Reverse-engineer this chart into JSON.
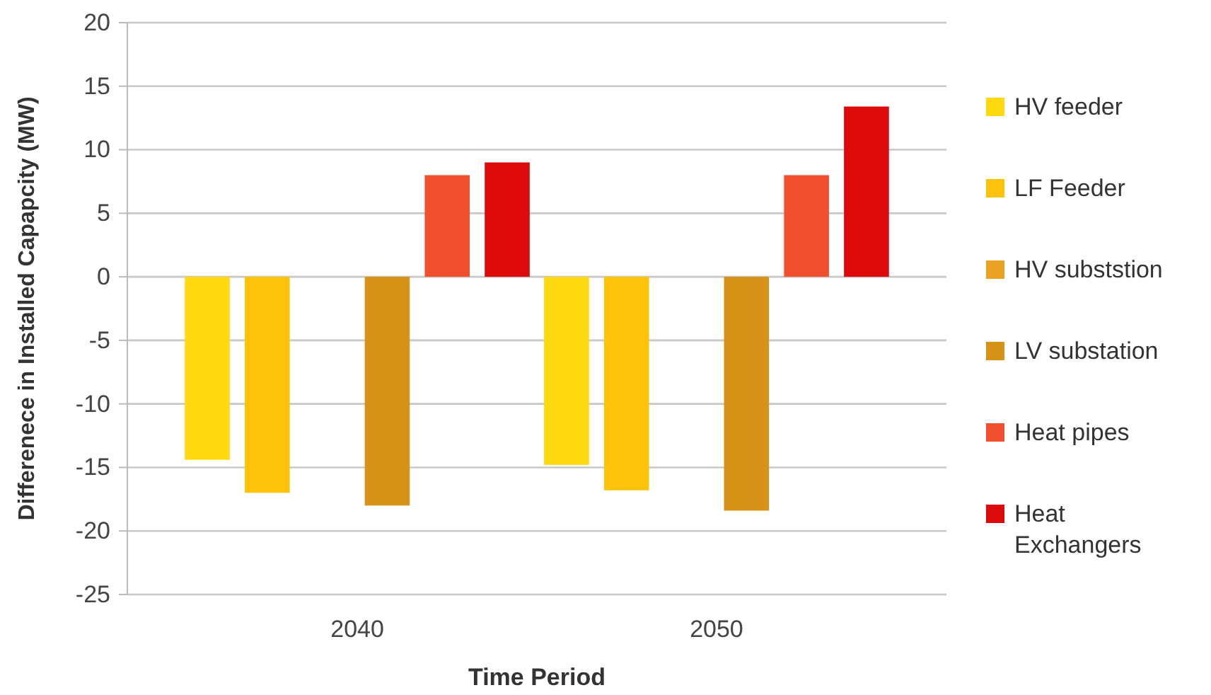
{
  "chart_data": {
    "type": "bar",
    "xlabel": "Time Period",
    "ylabel": "Differenece in Installed Capapcity (MW)",
    "categories": [
      "2040",
      "2050"
    ],
    "series": [
      {
        "name": "HV feeder",
        "color": "#ffd90f",
        "values": [
          -14.4,
          -14.8
        ]
      },
      {
        "name": "LF Feeder",
        "color": "#fdc30a",
        "values": [
          -17.0,
          -16.8
        ]
      },
      {
        "name": "HV subststion",
        "color": "#e8a323",
        "values": [
          0,
          0
        ]
      },
      {
        "name": "LV substation",
        "color": "#d69318",
        "values": [
          -18.0,
          -18.4
        ]
      },
      {
        "name": "Heat pipes",
        "color": "#f0502e",
        "values": [
          8.0,
          8.0
        ]
      },
      {
        "name": "Heat Exchangers",
        "color": "#dc0a0a",
        "values": [
          9.0,
          13.4
        ]
      }
    ],
    "ylim": [
      -25,
      20
    ],
    "yticks": [
      -25,
      -20,
      -15,
      -10,
      -5,
      0,
      5,
      10,
      15,
      20
    ],
    "grid": "y",
    "legend": "right"
  }
}
